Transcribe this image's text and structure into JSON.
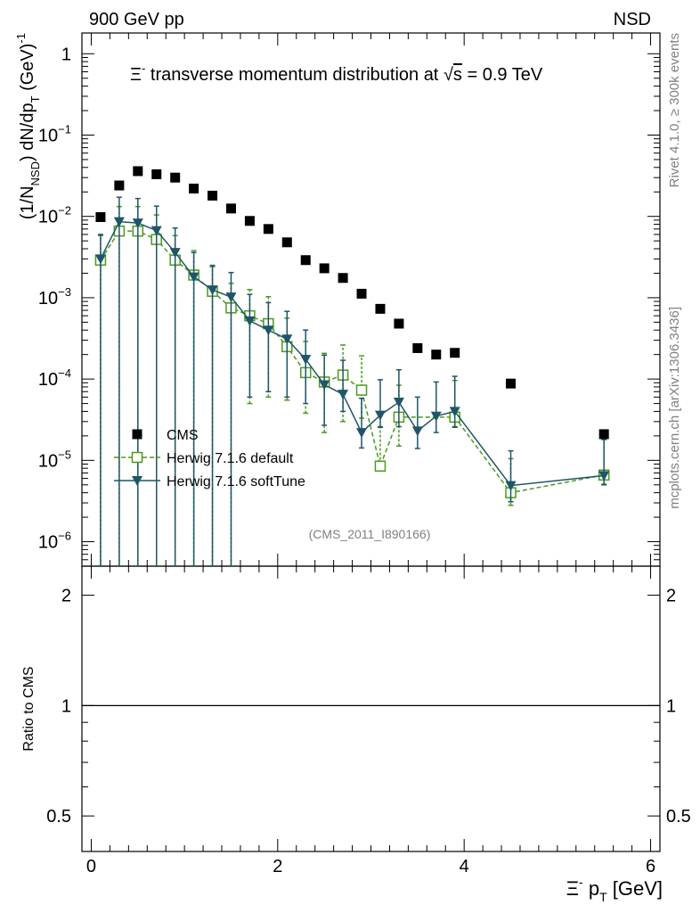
{
  "header": {
    "left_label": "900 GeV pp",
    "right_label": "NSD"
  },
  "side_labels": {
    "rivet": "Rivet 4.1.0, ≥ 300k events",
    "mcplots": "mcplots.cern.ch [arXiv:1306.3436]"
  },
  "colors": {
    "cms": "#000000",
    "herwig_default": "#4a9a1e",
    "herwig_soft": "#1f5568"
  },
  "chart_data": [
    {
      "type": "scatter",
      "panel": "main",
      "title": "Ξ⁻ transverse momentum distribution at √s = 0.9 TeV",
      "title_parts": {
        "xi": "Ξ",
        "xi_sup": "-",
        "before_sqrt": " transverse momentum distribution at ",
        "sqrt_s": "s",
        "after_sqrt": " = 0.9 TeV"
      },
      "ylabel": "(1/N_NSD) dN/dp_T (GeV)^-1",
      "ylabel_parts": {
        "a": "(1/N",
        "a_sub": "NSD",
        "b": ") dN/dp",
        "b_sub": "T",
        "c": " (GeV)",
        "c_sup": "-1"
      },
      "yscale": "log",
      "ylim": [
        5e-07,
        1.8
      ],
      "xlim": [
        -0.1,
        6.1
      ],
      "yticks": [
        {
          "value": 1,
          "base": "1",
          "exp": ""
        },
        {
          "value": 0.1,
          "base": "10",
          "exp": "−1"
        },
        {
          "value": 0.01,
          "base": "10",
          "exp": "−2"
        },
        {
          "value": 0.001,
          "base": "10",
          "exp": "−3"
        },
        {
          "value": 0.0001,
          "base": "10",
          "exp": "−4"
        },
        {
          "value": 1e-05,
          "base": "10",
          "exp": "−5"
        },
        {
          "value": 1e-06,
          "base": "10",
          "exp": "−6"
        }
      ],
      "analysis_label": "(CMS_2011_I890166)",
      "legend_position": "bottom-left",
      "series": [
        {
          "name": "CMS",
          "marker": "filled-square",
          "x": [
            0.1,
            0.3,
            0.5,
            0.7,
            0.9,
            1.1,
            1.3,
            1.5,
            1.7,
            1.9,
            2.1,
            2.3,
            2.5,
            2.7,
            2.9,
            3.1,
            3.3,
            3.5,
            3.7,
            3.9,
            4.5,
            5.5
          ],
          "y": [
            0.0098,
            0.024,
            0.036,
            0.033,
            0.03,
            0.022,
            0.018,
            0.0125,
            0.0088,
            0.007,
            0.0048,
            0.0029,
            0.0023,
            0.00175,
            0.00112,
            0.00073,
            0.00048,
            0.00024,
            0.0002,
            0.00021,
            8.8e-05,
            2.1e-05
          ],
          "err_low": [],
          "err_high": []
        },
        {
          "name": "Herwig 7.1.6 default",
          "marker": "open-square",
          "line": "dashed",
          "x": [
            0.1,
            0.3,
            0.5,
            0.7,
            0.9,
            1.1,
            1.3,
            1.5,
            1.7,
            1.9,
            2.1,
            2.3,
            2.5,
            2.7,
            2.9,
            3.1,
            3.3,
            3.9,
            4.5,
            5.5
          ],
          "y": [
            0.0029,
            0.0066,
            0.0066,
            0.0052,
            0.0029,
            0.0019,
            0.0012,
            0.00075,
            0.0006,
            0.00048,
            0.00025,
            0.00012,
            9.2e-05,
            0.000112,
            7.3e-05,
            8.5e-06,
            3.4e-05,
            3.4e-05,
            4e-06,
            6.6e-06
          ],
          "err_low": [
            0.0029,
            0.0066,
            0.0066,
            0.0052,
            0.0029,
            0.0019,
            0.0012,
            0.00075,
            0.00055,
            0.00042,
            0.000195,
            8.2e-05,
            7e-05,
            8.2e-05,
            4e-05,
            6e-07,
            1.9e-05,
            8e-06,
            1.2e-06,
            1.5e-06
          ],
          "err_high": [
            0.0029,
            0.0066,
            0.0066,
            0.0052,
            0.0029,
            0.0019,
            0.0012,
            0.00075,
            0.00066,
            0.00055,
            0.00031,
            0.00017,
            0.000115,
            0.00015,
            0.00012,
            1.75e-05,
            5e-05,
            6.2e-05,
            6.5e-06,
            1.2e-05
          ]
        },
        {
          "name": "Herwig 7.1.6 softTune",
          "marker": "filled-triangle-down",
          "line": "solid",
          "x": [
            0.1,
            0.3,
            0.5,
            0.7,
            0.9,
            1.1,
            1.3,
            1.5,
            1.7,
            1.9,
            2.1,
            2.3,
            2.5,
            2.7,
            2.9,
            3.1,
            3.3,
            3.5,
            3.7,
            3.9,
            4.5,
            5.5
          ],
          "y": [
            0.003,
            0.0086,
            0.0083,
            0.0067,
            0.0036,
            0.0018,
            0.00125,
            0.00102,
            0.00052,
            0.0004,
            0.00031,
            0.000175,
            8.5e-05,
            6.5e-05,
            2.2e-05,
            3.6e-05,
            5.2e-05,
            2.3e-05,
            3.5e-05,
            4e-05,
            4.9e-06,
            6.5e-06
          ],
          "err_low": [
            0.003,
            0.0086,
            0.0083,
            0.0067,
            0.0036,
            0.0018,
            0.00125,
            0.00102,
            0.00046,
            0.00033,
            0.00025,
            0.000125,
            5.8e-05,
            2.5e-05,
            7.8e-06,
            1.05e-05,
            2.6e-05,
            9e-06,
            1.3e-05,
            1.45e-05,
            1.8e-06,
            1.5e-06
          ],
          "err_high": [
            0.003,
            0.0086,
            0.0083,
            0.0067,
            0.0036,
            0.0018,
            0.00125,
            0.00102,
            0.00058,
            0.00047,
            0.00037,
            0.000225,
            0.000112,
            0.000105,
            3.6e-05,
            6.2e-05,
            7.8e-05,
            3.7e-05,
            5.7e-05,
            6.8e-05,
            8.2e-06,
            1.15e-05
          ]
        }
      ]
    },
    {
      "type": "line",
      "panel": "ratio",
      "ylabel": "Ratio to CMS",
      "yscale": "log",
      "ylim": [
        0.4,
        2.4
      ],
      "yticks": [
        0.5,
        1,
        2
      ],
      "reference_line": 1,
      "xlabel": "Ξ⁻ p_T [GeV]",
      "xlabel_parts": {
        "xi": "Ξ",
        "xi_sup": "-",
        "p": " p",
        "p_sub": "T",
        "unit": " [GeV]"
      },
      "xticks": [
        0,
        2,
        4,
        6
      ]
    }
  ]
}
